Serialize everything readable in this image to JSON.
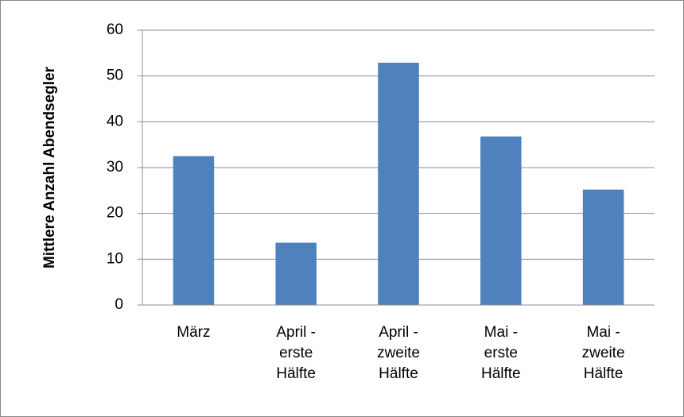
{
  "chart_data": {
    "type": "bar",
    "y_label": "Mittlere Anzahl Abendsegler",
    "categories": [
      "März",
      "April - erste Hälfte",
      "April - zweite Hälfte",
      "Mai - erste Hälfte",
      "Mai - zweite Hälfte"
    ],
    "values": [
      32.5,
      13.6,
      52.9,
      36.8,
      25.2
    ],
    "color": "#4f81bd",
    "ylim": [
      0,
      60
    ],
    "yticks": [
      0,
      10,
      20,
      30,
      40,
      50,
      60
    ],
    "grid": true
  }
}
